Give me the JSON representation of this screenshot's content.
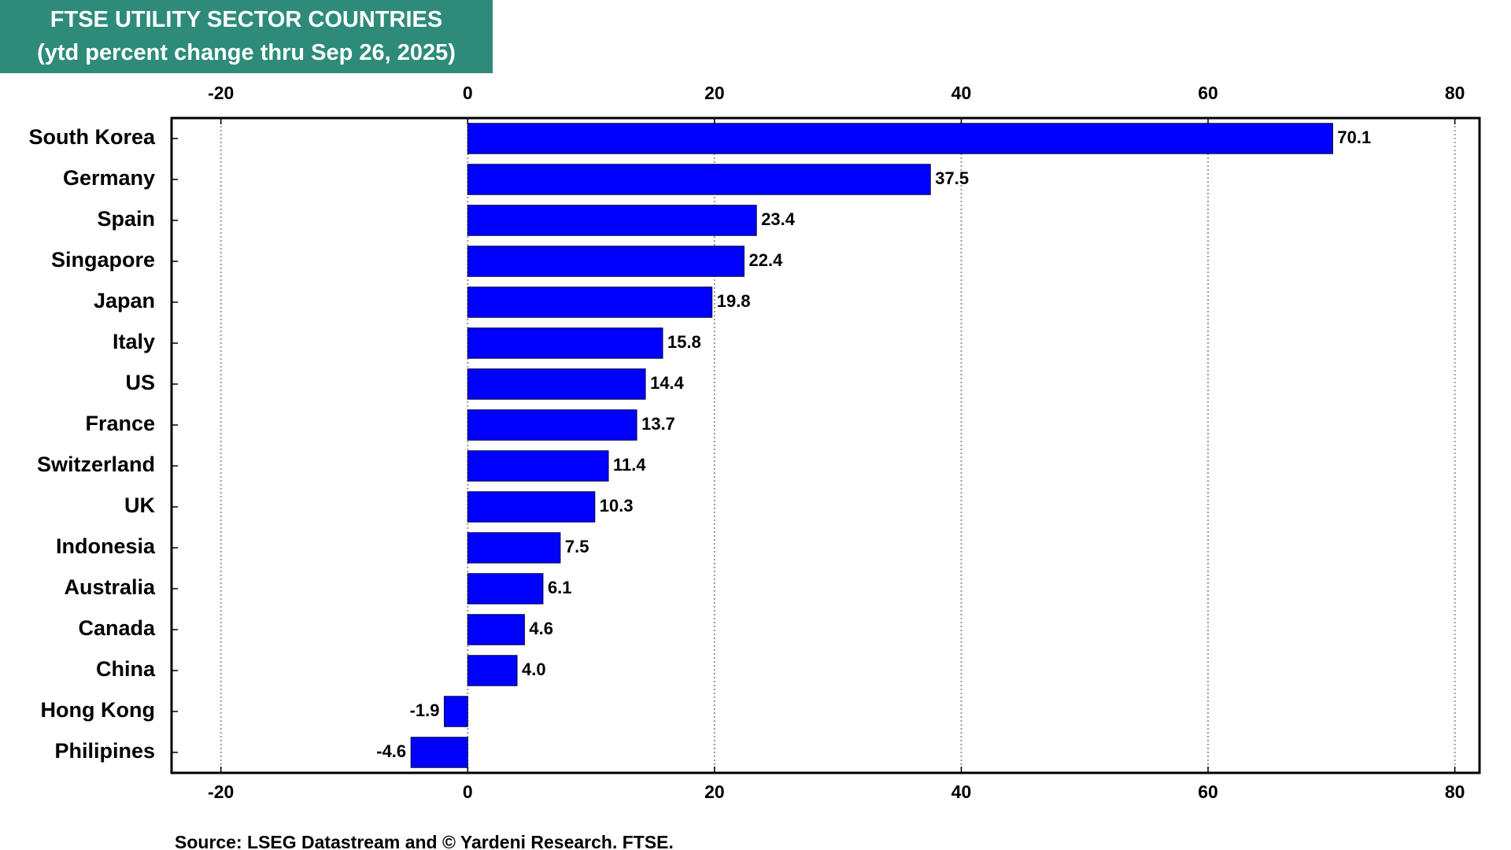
{
  "chart_data": {
    "type": "bar",
    "orientation": "horizontal",
    "title": "FTSE UTILITY SECTOR COUNTRIES",
    "subtitle": "(ytd percent change thru Sep 26, 2025)",
    "source": "Source: LSEG Datastream and © Yardeni Research. FTSE.",
    "categories": [
      "South Korea",
      "Germany",
      "Spain",
      "Singapore",
      "Japan",
      "Italy",
      "US",
      "France",
      "Switzerland",
      "UK",
      "Indonesia",
      "Australia",
      "Canada",
      "China",
      "Hong Kong",
      "Philipines"
    ],
    "values": [
      70.1,
      37.5,
      23.4,
      22.4,
      19.8,
      15.8,
      14.4,
      13.7,
      11.4,
      10.3,
      7.5,
      6.1,
      4.6,
      4.0,
      -1.9,
      -4.6
    ],
    "value_labels": [
      "70.1",
      "37.5",
      "23.4",
      "22.4",
      "19.8",
      "15.8",
      "14.4",
      "13.7",
      "11.4",
      "10.3",
      "7.5",
      "6.1",
      "4.6",
      "4.0",
      "-1.9",
      "-4.6"
    ],
    "color": "#0000ff",
    "xlim": [
      -24,
      82
    ],
    "xticks": [
      -20,
      0,
      20,
      40,
      60,
      80
    ],
    "grid": true
  }
}
